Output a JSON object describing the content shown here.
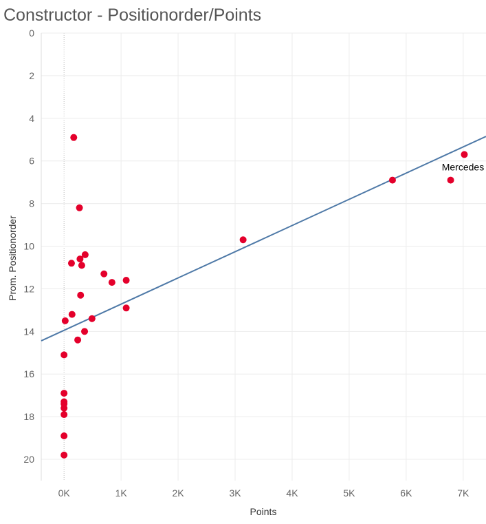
{
  "title": "Constructor - Positionorder/Points",
  "colors": {
    "point": "#e4002b",
    "trend": "#4e79a7",
    "grid": "#ececec",
    "zero": "#bbbbbb"
  },
  "chart_data": {
    "type": "scatter",
    "title": "Constructor - Positionorder/Points",
    "xlabel": "Points",
    "ylabel": "Prom. Positionorder",
    "xlim": [
      -400,
      7400
    ],
    "ylim": [
      0,
      21
    ],
    "y_reversed": true,
    "grid": true,
    "x_ticks": [
      {
        "v": 0,
        "label": "0K"
      },
      {
        "v": 1000,
        "label": "1K"
      },
      {
        "v": 2000,
        "label": "2K"
      },
      {
        "v": 3000,
        "label": "3K"
      },
      {
        "v": 4000,
        "label": "4K"
      },
      {
        "v": 5000,
        "label": "5K"
      },
      {
        "v": 6000,
        "label": "6K"
      },
      {
        "v": 7000,
        "label": "7K"
      }
    ],
    "y_ticks": [
      {
        "v": 0,
        "label": "0"
      },
      {
        "v": 2,
        "label": "2"
      },
      {
        "v": 4,
        "label": "4"
      },
      {
        "v": 6,
        "label": "6"
      },
      {
        "v": 8,
        "label": "8"
      },
      {
        "v": 10,
        "label": "10"
      },
      {
        "v": 12,
        "label": "12"
      },
      {
        "v": 14,
        "label": "14"
      },
      {
        "v": 16,
        "label": "16"
      },
      {
        "v": 18,
        "label": "18"
      },
      {
        "v": 20,
        "label": "20"
      }
    ],
    "points": [
      {
        "x": 170,
        "y": 4.9
      },
      {
        "x": 270,
        "y": 8.2
      },
      {
        "x": 370,
        "y": 10.4
      },
      {
        "x": 280,
        "y": 10.6
      },
      {
        "x": 130,
        "y": 10.8
      },
      {
        "x": 310,
        "y": 10.9
      },
      {
        "x": 700,
        "y": 11.3
      },
      {
        "x": 840,
        "y": 11.7
      },
      {
        "x": 1090,
        "y": 11.6
      },
      {
        "x": 290,
        "y": 12.3
      },
      {
        "x": 1090,
        "y": 12.9
      },
      {
        "x": 140,
        "y": 13.2
      },
      {
        "x": 20,
        "y": 13.5
      },
      {
        "x": 490,
        "y": 13.4
      },
      {
        "x": 360,
        "y": 14.0
      },
      {
        "x": 240,
        "y": 14.4
      },
      {
        "x": 0,
        "y": 15.1
      },
      {
        "x": 0,
        "y": 16.9
      },
      {
        "x": 0,
        "y": 17.3
      },
      {
        "x": 0,
        "y": 17.4
      },
      {
        "x": 0,
        "y": 17.6
      },
      {
        "x": 0,
        "y": 17.9
      },
      {
        "x": 0,
        "y": 18.9
      },
      {
        "x": 0,
        "y": 19.8
      },
      {
        "x": 3140,
        "y": 9.7
      },
      {
        "x": 5760,
        "y": 6.9
      },
      {
        "x": 6780,
        "y": 6.9
      },
      {
        "x": 7020,
        "y": 5.7
      }
    ],
    "trend_line": {
      "x": [
        -400,
        7400
      ],
      "y": [
        14.44,
        4.85
      ]
    },
    "annotations": [
      {
        "text": "Mercedes",
        "x": 7020,
        "y": 5.7
      }
    ]
  }
}
